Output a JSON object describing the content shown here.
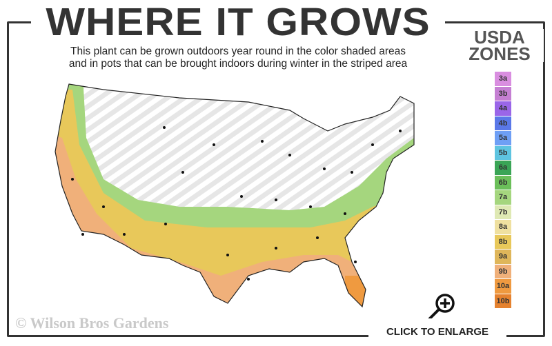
{
  "header": {
    "title": "WHERE IT GROWS",
    "subtitle_line1": "This plant can be grown outdoors year round in the color shaded areas",
    "subtitle_line2": "and in pots that can be brought indoors during winter in the striped area"
  },
  "legend": {
    "title_line1": "USDA",
    "title_line2": "ZONES",
    "zones": [
      {
        "label": "3a",
        "color": "#d98ee0"
      },
      {
        "label": "3b",
        "color": "#c57fd3"
      },
      {
        "label": "4a",
        "color": "#9a66e8"
      },
      {
        "label": "4b",
        "color": "#5a78e8"
      },
      {
        "label": "5a",
        "color": "#6e9ff5"
      },
      {
        "label": "5b",
        "color": "#5ec4e0"
      },
      {
        "label": "6a",
        "color": "#3aa556"
      },
      {
        "label": "6b",
        "color": "#6bbf5a"
      },
      {
        "label": "7a",
        "color": "#a5d67e"
      },
      {
        "label": "7b",
        "color": "#dfe9b4"
      },
      {
        "label": "8a",
        "color": "#efe0a0"
      },
      {
        "label": "8b",
        "color": "#e8c85a"
      },
      {
        "label": "9a",
        "color": "#dfb65a"
      },
      {
        "label": "9b",
        "color": "#f0b07a"
      },
      {
        "label": "10a",
        "color": "#ef9a40"
      },
      {
        "label": "10b",
        "color": "#e5822f"
      }
    ]
  },
  "footer": {
    "copyright": "© Wilson Bros Gardens",
    "enlarge_label": "CLICK TO ENLARGE",
    "enlarge_icon": "magnifier-plus-icon"
  }
}
